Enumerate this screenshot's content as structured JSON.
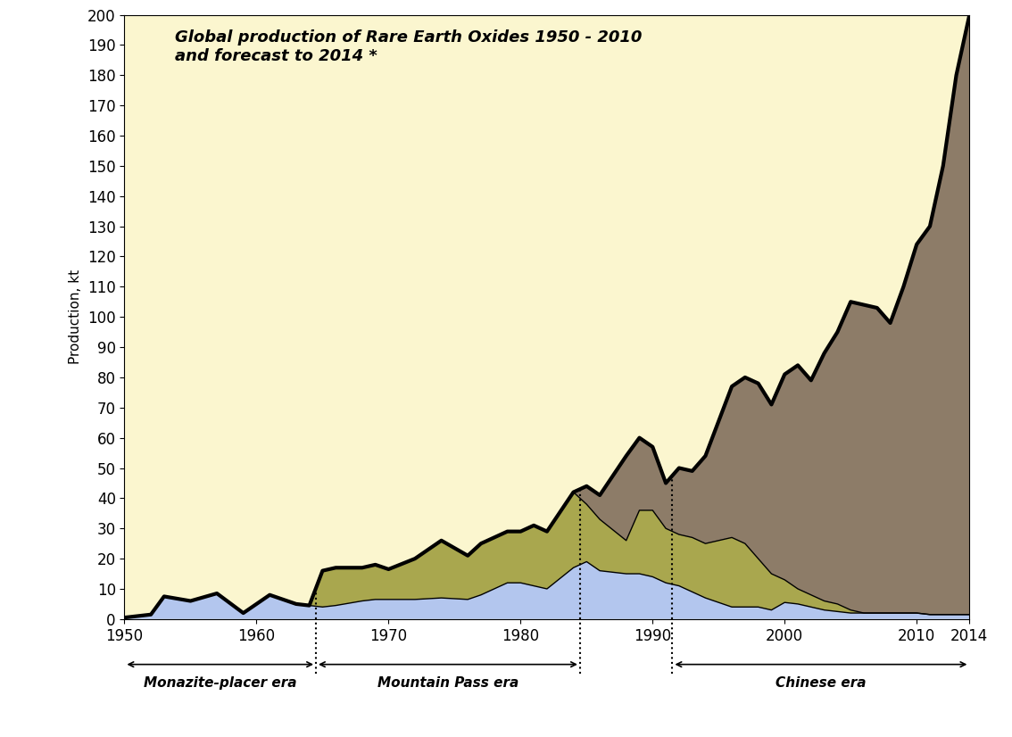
{
  "chart_data": {
    "type": "area",
    "stacked": true,
    "title": "Global production of Rare Earth Oxides 1950 - 2010\nand forecast to 2014 *",
    "y_label": "Production, kt",
    "x": [
      1950,
      1952,
      1953,
      1955,
      1957,
      1959,
      1961,
      1963,
      1964,
      1965,
      1966,
      1968,
      1969,
      1970,
      1972,
      1974,
      1976,
      1977,
      1979,
      1980,
      1981,
      1982,
      1984,
      1985,
      1986,
      1988,
      1989,
      1990,
      1991,
      1992,
      1993,
      1994,
      1996,
      1997,
      1998,
      1999,
      2000,
      2001,
      2002,
      2003,
      2004,
      2005,
      2006,
      2007,
      2008,
      2009,
      2010,
      2011,
      2012,
      2013,
      2014
    ],
    "series": [
      {
        "color": "#b3c6ee",
        "values": [
          0.5,
          1.5,
          7.5,
          6,
          8.5,
          2,
          8,
          5,
          4.5,
          4,
          4.5,
          6,
          6.5,
          6.5,
          6.5,
          7,
          6.5,
          8,
          12,
          12,
          11,
          10,
          17,
          19,
          16,
          15,
          15,
          14,
          12,
          11,
          9,
          7,
          4,
          4,
          4,
          3,
          5.5,
          5,
          4,
          3,
          2.5,
          2,
          2,
          2,
          2,
          2,
          2,
          1.5,
          1.5,
          1.5,
          1.5
        ]
      },
      {
        "color": "#a9a74e",
        "values": [
          0,
          0,
          0,
          0,
          0,
          0,
          0,
          0,
          0,
          12,
          12.5,
          11,
          11.5,
          10,
          13.5,
          19,
          14.5,
          17,
          17,
          17,
          20,
          19,
          25,
          19,
          17,
          11,
          21,
          22,
          18,
          17,
          18,
          18,
          23,
          21,
          16,
          12,
          7.5,
          5,
          4,
          3,
          2.5,
          1,
          0,
          0,
          0,
          0,
          0,
          0,
          0,
          0,
          0
        ]
      },
      {
        "color": "#8d7c68",
        "values": [
          0,
          0,
          0,
          0,
          0,
          0,
          0,
          0,
          0,
          0,
          0,
          0,
          0,
          0,
          0,
          0,
          0,
          0,
          0,
          0,
          0,
          0,
          0,
          6,
          8,
          28,
          24,
          21,
          15,
          22,
          22,
          29,
          50,
          55,
          58,
          56,
          68,
          74,
          71,
          82,
          90,
          102,
          102,
          101,
          96,
          108,
          122,
          128.5,
          148.5,
          178.5,
          198.5
        ]
      }
    ],
    "xlim": [
      1950,
      2014
    ],
    "xticks": [
      1950,
      1960,
      1970,
      1980,
      1990,
      2000,
      2010,
      2014
    ],
    "ylim": [
      0,
      200
    ],
    "yticks": [
      0,
      10,
      20,
      30,
      40,
      50,
      60,
      70,
      80,
      90,
      100,
      110,
      120,
      130,
      140,
      150,
      160,
      170,
      180,
      190,
      200
    ],
    "grid": false,
    "eras": [
      {
        "label": "Monazite-placer era",
        "start": 1950,
        "end": 1964.5
      },
      {
        "label": "Mountain Pass era",
        "start": 1964.5,
        "end": 1984.5
      },
      {
        "label": "Chinese era",
        "start": 1991.5,
        "end": 2014
      }
    ]
  }
}
